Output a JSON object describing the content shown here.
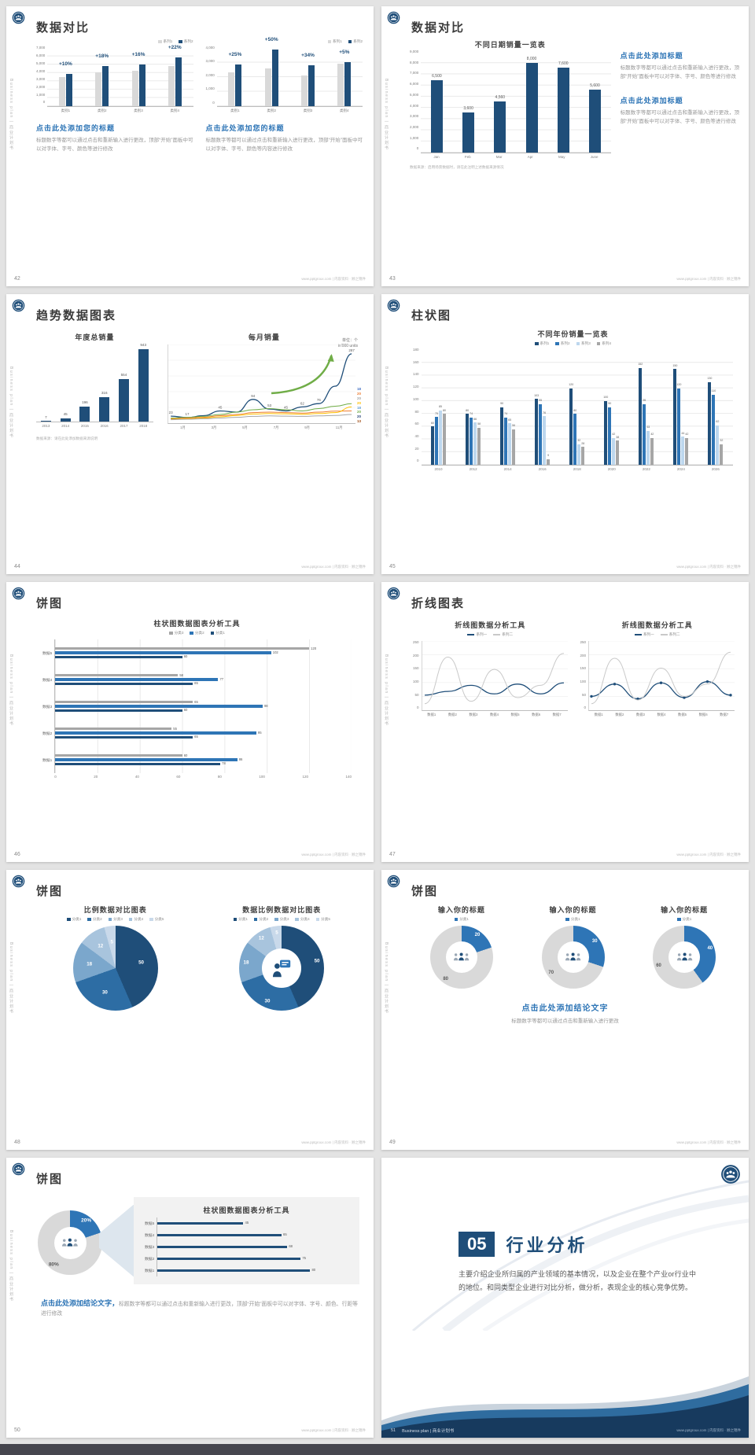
{
  "meta": {
    "footer_url": "www.pptgroux.com | 内容资料 · 顾之锦件",
    "side_text": "Business plan | 商业计划书",
    "colors": {
      "navy": "#1f4e79",
      "blue": "#2e75b6",
      "lightblue": "#9dc3e6",
      "paleblue": "#bdd7ee",
      "gray": "#d9d9d9",
      "midgray": "#a6a6a6"
    }
  },
  "slides": {
    "s42": {
      "page": "42",
      "title": "数据对比",
      "charts": [
        {
          "legend": [
            "系列1",
            "系列2"
          ],
          "legend_colors": [
            "#d9d9d9",
            "#1f4e79"
          ],
          "yticks": [
            "7,000",
            "6,000",
            "5,000",
            "4,000",
            "3,000",
            "2,000",
            "1,000",
            "0"
          ],
          "ymax": 7000,
          "categories": [
            "类别1",
            "类别2",
            "类别3",
            "类别4"
          ],
          "pct_labels": [
            "+10%",
            "+18%",
            "+16%",
            "+22%"
          ],
          "series": [
            {
              "name": "系列1",
              "color": "#d9d9d9",
              "values": [
                3500,
                4100,
                4300,
                4800
              ]
            },
            {
              "name": "系列2",
              "color": "#1f4e79",
              "values": [
                3850,
                4840,
                4990,
                5860
              ]
            }
          ]
        },
        {
          "legend": [
            "系列1",
            "系列2"
          ],
          "legend_colors": [
            "#d9d9d9",
            "#1f4e79"
          ],
          "yticks": [
            "4,000",
            "3,000",
            "2,000",
            "1,000",
            "0"
          ],
          "ymax": 4000,
          "categories": [
            "类别1",
            "类别2",
            "类别3",
            "类别4"
          ],
          "pct_labels": [
            "+25%",
            "+50%",
            "+34%",
            "+5%"
          ],
          "series": [
            {
              "name": "系列1",
              "color": "#d9d9d9",
              "values": [
                2300,
                2600,
                2100,
                2900
              ]
            },
            {
              "name": "系列2",
              "color": "#1f4e79",
              "values": [
                2880,
                3900,
                2810,
                3050
              ]
            }
          ]
        }
      ],
      "blocks": [
        {
          "headline": "点击此处添加您的标题",
          "body": "标题数字等都可以通过点击和重新输入进行更改，顶部“开始”面板中可以对字体、字号、颜色等进行修改"
        },
        {
          "headline": "点击此处添加您的标题",
          "body": "标题数字等都可以通过点击和重新输入进行更改，顶部“开始”面板中可以对字体、字号、颜色等内容进行修改"
        }
      ]
    },
    "s43": {
      "page": "43",
      "title": "数据对比",
      "chart": {
        "title": "不同日期销量一览表",
        "yticks": [
          "9,000",
          "8,000",
          "7,000",
          "6,000",
          "5,000",
          "4,000",
          "3,000",
          "2,000",
          "1,000",
          "0"
        ],
        "ymax": 9000,
        "categories": [
          "Jan",
          "Feb",
          "Mar",
          "Apr",
          "May",
          "June"
        ],
        "bar_color": "#1f4e79",
        "values": [
          6500,
          3600,
          4560,
          8000,
          7600,
          5600
        ],
        "value_labels": [
          "6,500",
          "3,600",
          "4,560",
          "8,000",
          "7,600",
          "5,600"
        ]
      },
      "blocks": [
        {
          "headline": "点击此处添加标题",
          "body": "标题数字等都可以通过点击和重新输入进行更改，顶部“开始”面板中可以对字体、字号、颜色等进行修改"
        },
        {
          "headline": "点击此处添加标题",
          "body": "标题数字等都可以通过点击和重新输入进行更改，顶部“开始”面板中可以对字体、字号、颜色等进行修改"
        }
      ],
      "note": "数据来源：启用场景数据时，请在此注明上述数据来源情况"
    },
    "s44": {
      "page": "44",
      "title": "趋势数据图表",
      "unit_label": "单位：个\nin'000 units",
      "left_chart": {
        "title": "年度总销量",
        "ymax": 1000,
        "categories": [
          "2013",
          "2014",
          "2015",
          "2016",
          "2017",
          "2018"
        ],
        "bar_color": "#1f4e79",
        "values": [
          7,
          45,
          196,
          316,
          554,
          943
        ]
      },
      "right_chart": {
        "title": "每月销量",
        "ymax": 300,
        "x_labels": [
          "1月",
          "3月",
          "5月",
          "7月",
          "9月",
          "11月"
        ],
        "arrow": true,
        "series": [
          {
            "color": "#1f4e79",
            "width": 1.3,
            "values": [
              23,
              17,
              25,
              45,
              40,
              94,
              53,
              45,
              62,
              76,
              150,
              287
            ],
            "labels": [
              "23",
              "17",
              "",
              "45",
              "",
              "94",
              "53",
              "45",
              "62",
              "76",
              "",
              "287"
            ]
          },
          {
            "color": "#70ad47",
            "values": [
              15,
              18,
              22,
              30,
              40,
              50,
              55,
              50,
              45,
              55,
              65,
              76
            ]
          },
          {
            "color": "#ed7d31",
            "values": [
              12,
              15,
              18,
              25,
              30,
              38,
              40,
              38,
              36,
              40,
              44,
              45
            ]
          },
          {
            "color": "#ffc000",
            "values": [
              10,
              12,
              15,
              20,
              26,
              32,
              34,
              33,
              31,
              34,
              38,
              62
            ]
          },
          {
            "color": "#a5a5a5",
            "values": [
              8,
              10,
              12,
              15,
              18,
              22,
              24,
              23,
              22,
              24,
              26,
              30
            ]
          }
        ],
        "right_labels": [
          {
            "t": "18",
            "c": "#4472c4"
          },
          {
            "t": "20",
            "c": "#ed7d31"
          },
          {
            "t": "20",
            "c": "#a5a5a5"
          },
          {
            "t": "20",
            "c": "#ffc000"
          },
          {
            "t": "18",
            "c": "#5b9bd5"
          },
          {
            "t": "20",
            "c": "#70ad47"
          },
          {
            "t": "20",
            "c": "#264478"
          },
          {
            "t": "13",
            "c": "#9e480e"
          }
        ]
      },
      "note": "数据来源：请在此处添加数据来源说明"
    },
    "s45": {
      "page": "45",
      "title": "柱状图",
      "chart": {
        "title": "不同年份销量一览表",
        "legend": [
          "系列1",
          "系列2",
          "系列3",
          "系列4"
        ],
        "yticks": [
          "180",
          "160",
          "140",
          "120",
          "100",
          "80",
          "60",
          "40",
          "20",
          "0"
        ],
        "ymax": 180,
        "categories": [
          "2010",
          "2012",
          "2014",
          "2016",
          "2018",
          "2020",
          "2022",
          "2024",
          "2026"
        ],
        "series": [
          {
            "name": "系列1",
            "color": "#1f4e79",
            "values": [
              60,
              80,
              90,
              103,
              120,
              100,
              152,
              150,
              130
            ]
          },
          {
            "name": "系列2",
            "color": "#2e75b6",
            "values": [
              75,
              74,
              74,
              95,
              80,
              90,
              95,
              120,
              110
            ]
          },
          {
            "name": "系列3",
            "color": "#bdd7ee",
            "values": [
              85,
              66,
              65,
              76,
              32,
              42,
              53,
              44,
              62
            ]
          },
          {
            "name": "系列4",
            "color": "#a6a6a6",
            "values": [
              80,
              58,
              56,
              9,
              28,
              38,
              42,
              42,
              32
            ]
          }
        ]
      }
    },
    "s46": {
      "page": "46",
      "title": "饼图",
      "chart": {
        "title": "柱状图数据图表分析工具",
        "legend": [
          "分类3",
          "分类2",
          "分类1"
        ],
        "legend_colors": [
          "#a6a6a6",
          "#2e75b6",
          "#1f4e79"
        ],
        "colors": [
          "#a6a6a6",
          "#2e75b6",
          "#1f4e79"
        ],
        "xticks": [
          "0",
          "20",
          "40",
          "60",
          "80",
          "100",
          "120",
          "140"
        ],
        "xmax": 140,
        "rows": [
          {
            "label": "数据5",
            "values": [
              120,
              102,
              60
            ]
          },
          {
            "label": "数据4",
            "values": [
              58,
              77,
              65
            ]
          },
          {
            "label": "数据3",
            "values": [
              65,
              98,
              60
            ]
          },
          {
            "label": "数据2",
            "values": [
              55,
              95,
              65
            ]
          },
          {
            "label": "数据1",
            "values": [
              60,
              86,
              78
            ]
          }
        ]
      }
    },
    "s47": {
      "page": "47",
      "title": "折线图表",
      "charts": [
        {
          "title": "折线图数据分析工具",
          "legend": [
            {
              "name": "系列一",
              "color": "#1f4e79"
            },
            {
              "name": "系列二",
              "color": "#c9c9c9"
            }
          ],
          "yticks": [
            "250",
            "200",
            "150",
            "100",
            "50",
            "0"
          ],
          "ymax": 250,
          "x_labels": [
            "数据1",
            "数据2",
            "数据3",
            "数据4",
            "数据5",
            "数据6",
            "数据7"
          ],
          "series": [
            {
              "color": "#1f4e79",
              "width": 1.3,
              "values": [
                55,
                70,
                95,
                60,
                100,
                60,
                105
              ]
            },
            {
              "color": "#c9c9c9",
              "values": [
                20,
                210,
                30,
                160,
                45,
                95,
                225
              ]
            }
          ]
        },
        {
          "title": "折线图数据分析工具",
          "legend": [
            {
              "name": "系列一",
              "color": "#1f4e79"
            },
            {
              "name": "系列二",
              "color": "#c9c9c9"
            }
          ],
          "yticks": [
            "250",
            "200",
            "150",
            "100",
            "50",
            "0"
          ],
          "ymax": 250,
          "x_labels": [
            "数据1",
            "数据2",
            "数据3",
            "数据4",
            "数据5",
            "数据6",
            "数据7"
          ],
          "series": [
            {
              "color": "#1f4e79",
              "width": 1.3,
              "markers": true,
              "values": [
                50,
                100,
                40,
                105,
                45,
                110,
                55
              ]
            },
            {
              "color": "#c9c9c9",
              "values": [
                20,
                205,
                35,
                165,
                50,
                100,
                230
              ]
            }
          ]
        }
      ]
    },
    "s48": {
      "page": "48",
      "title": "饼图",
      "charts": [
        {
          "title": "比例数据对比图表",
          "legend": [
            "分类1",
            "分类2",
            "分类3",
            "分类4",
            "分类5"
          ],
          "values": [
            50,
            30,
            18,
            12,
            5
          ],
          "labels": [
            "50",
            "30",
            "18",
            "12",
            "5"
          ],
          "colors": [
            "#1f4e79",
            "#2d6da4",
            "#7ba7cc",
            "#a8c4dd",
            "#c9d9ea"
          ]
        },
        {
          "title": "数据比例数据对比图表",
          "legend": [
            "分类1",
            "分类2",
            "分类3",
            "分类4",
            "分类5"
          ],
          "values": [
            50,
            30,
            18,
            12,
            5
          ],
          "labels": [
            "50",
            "30",
            "18",
            "12",
            "5"
          ],
          "colors": [
            "#1f4e79",
            "#2d6da4",
            "#7ba7cc",
            "#a8c4dd",
            "#c9d9ea"
          ],
          "center_icon": "presenter"
        }
      ]
    },
    "s49": {
      "page": "49",
      "title": "饼图",
      "donuts": [
        {
          "title": "输入你的标题",
          "legend": [
            "分类1"
          ],
          "legend_colors": [
            "#2e75b6"
          ],
          "values": [
            20,
            80
          ],
          "labels": [
            "20",
            "80"
          ],
          "colors": [
            "#2e75b6",
            "#d9d9d9"
          ],
          "label_colors": [
            "#ffffff",
            "#595959"
          ],
          "center_icon": "ppl"
        },
        {
          "title": "输入你的标题",
          "legend": [
            "分类1"
          ],
          "legend_colors": [
            "#2e75b6"
          ],
          "values": [
            30,
            70
          ],
          "labels": [
            "30",
            "70"
          ],
          "colors": [
            "#2e75b6",
            "#d9d9d9"
          ],
          "label_colors": [
            "#ffffff",
            "#595959"
          ],
          "center_icon": "ppl"
        },
        {
          "title": "输入你的标题",
          "legend": [
            "分类1"
          ],
          "legend_colors": [
            "#2e75b6"
          ],
          "values": [
            40,
            60
          ],
          "labels": [
            "40",
            "60"
          ],
          "colors": [
            "#2e75b6",
            "#d9d9d9"
          ],
          "label_colors": [
            "#ffffff",
            "#595959"
          ],
          "center_icon": "ppl"
        }
      ],
      "conclusion_headline": "点击此处添加结论文字",
      "conclusion_body": "标题数字等都可以通过点击和重新输入进行更改"
    },
    "s50": {
      "page": "50",
      "title": "饼图",
      "donut": {
        "values": [
          20,
          80
        ],
        "labels": [
          "20%",
          "80%"
        ],
        "colors": [
          "#2e75b6",
          "#d9d9d9"
        ],
        "label_colors": [
          "#ffffff",
          "#595959"
        ],
        "center_icon": "ppl"
      },
      "panel": {
        "title": "柱状图数据图表分析工具",
        "colors": [
          "#1f4e79"
        ],
        "xmax": 100,
        "rows": [
          {
            "label": "数据5",
            "values": [
              45
            ]
          },
          {
            "label": "数据4",
            "values": [
              65
            ]
          },
          {
            "label": "数据3",
            "values": [
              68
            ]
          },
          {
            "label": "数据2",
            "values": [
              75
            ]
          },
          {
            "label": "数据1",
            "values": [
              80
            ]
          }
        ]
      },
      "conclusion_headline": "点击此处添加结论文字，",
      "conclusion_body": "标题数字等都可以通过点击和重新输入进行更改，顶部“开始”面板中可以对字体、字号、颜色、行距等进行修改"
    },
    "s51": {
      "page": "51",
      "number": "05",
      "title": "行业分析",
      "body": "主要介绍企业所归属的产业领域的基本情况，以及企业在整个产业or行业中的地位。和同类型企业进行对比分析，做分析，表现企业的核心竞争优势。",
      "footer_left": "Business plan | 商业计划书"
    }
  }
}
